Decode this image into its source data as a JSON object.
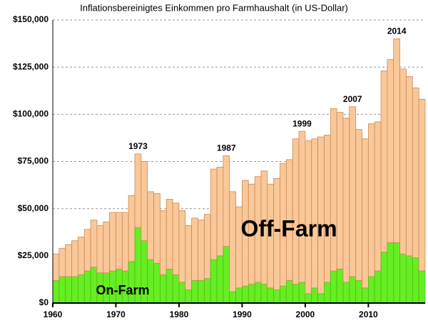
{
  "chart_data": {
    "type": "stacked_bar",
    "title": "Inflationsbereinigtes Einkommen pro Farmhaushalt (in US-Dollar)",
    "x": [
      1960,
      1961,
      1962,
      1963,
      1964,
      1965,
      1966,
      1967,
      1968,
      1969,
      1970,
      1971,
      1972,
      1973,
      1974,
      1975,
      1976,
      1977,
      1978,
      1979,
      1980,
      1981,
      1982,
      1983,
      1984,
      1985,
      1986,
      1987,
      1988,
      1989,
      1990,
      1991,
      1992,
      1993,
      1994,
      1995,
      1996,
      1997,
      1998,
      1999,
      2000,
      2001,
      2002,
      2003,
      2004,
      2005,
      2006,
      2007,
      2008,
      2009,
      2010,
      2011,
      2012,
      2013,
      2014,
      2015,
      2016,
      2017,
      2018
    ],
    "series": [
      {
        "name": "On-Farm",
        "color": "#66ee22",
        "values": [
          12000,
          14000,
          14000,
          14000,
          15000,
          17000,
          19000,
          16000,
          16000,
          17000,
          18000,
          17000,
          22000,
          40000,
          33000,
          23000,
          21000,
          15000,
          18000,
          15000,
          11000,
          7000,
          12000,
          12000,
          13000,
          23000,
          25000,
          30000,
          6000,
          8000,
          9000,
          10000,
          11000,
          10000,
          8000,
          7000,
          9000,
          12000,
          10000,
          11000,
          5000,
          8000,
          5000,
          11000,
          17000,
          18000,
          11000,
          14000,
          12000,
          8000,
          14000,
          17000,
          27000,
          32000,
          32000,
          26000,
          25000,
          24000,
          17000
        ]
      },
      {
        "name": "Off-Farm",
        "color": "#fac898",
        "values": [
          14000,
          15000,
          17000,
          19000,
          20000,
          22000,
          25000,
          25000,
          27000,
          31000,
          30000,
          31000,
          35000,
          39000,
          42000,
          36000,
          37000,
          34000,
          37000,
          38000,
          38000,
          34000,
          33000,
          32000,
          34000,
          48000,
          47000,
          48000,
          53000,
          43000,
          56000,
          53000,
          56000,
          60000,
          55000,
          59000,
          65000,
          64000,
          77000,
          80000,
          81000,
          79000,
          83000,
          78000,
          86000,
          83000,
          87000,
          90000,
          80000,
          79000,
          81000,
          79000,
          96000,
          97000,
          108000,
          98000,
          95000,
          90000,
          91000
        ]
      }
    ],
    "annotations": [
      "1973",
      "1987",
      "1999",
      "2007",
      "2014"
    ],
    "xlim": [
      1960,
      2019
    ],
    "xticks": [
      1960,
      1970,
      1980,
      1990,
      2000,
      2010
    ],
    "ylim": [
      0,
      150000
    ],
    "yticks": [
      {
        "value": 0,
        "label": "$0"
      },
      {
        "value": 25000,
        "label": "$25,000"
      },
      {
        "value": 50000,
        "label": "$50,000"
      },
      {
        "value": 75000,
        "label": "$75,000"
      },
      {
        "value": 100000,
        "label": "$100,000"
      },
      {
        "value": 125000,
        "label": "$125,000"
      },
      {
        "value": 150000,
        "label": "$150,000"
      }
    ],
    "grid": true
  }
}
